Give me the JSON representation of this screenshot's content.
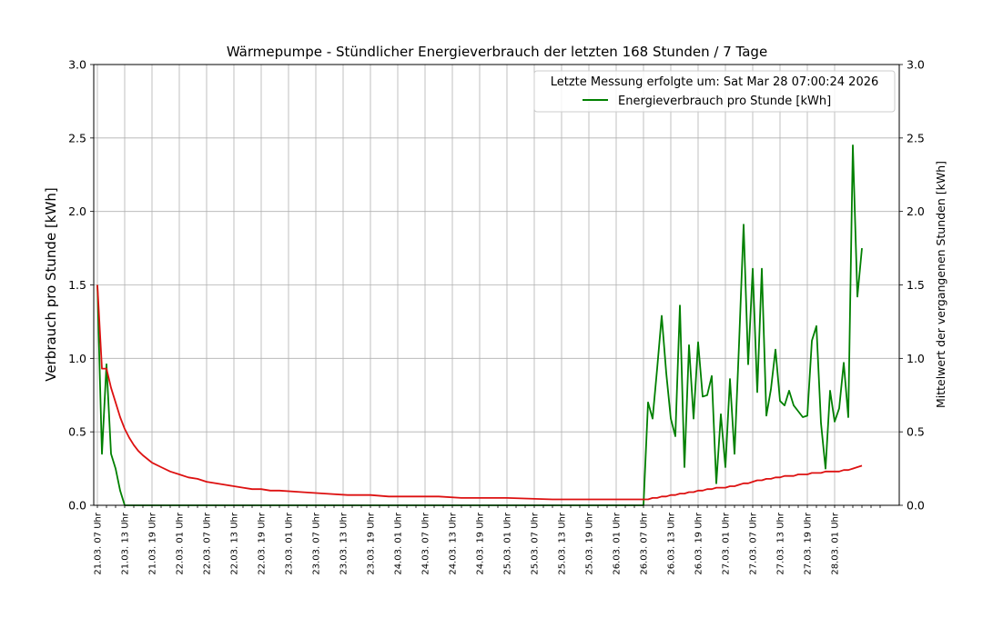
{
  "chart_data": {
    "type": "line",
    "title": "Wärmepumpe - Stündlicher Energieverbrauch der letzten 168 Stunden / 7 Tage",
    "ylabel": "Verbrauch pro Stunde [kWh]",
    "ylabel_right": "Mittelwert der vergangenen Stunden [kWh]",
    "ylim": [
      0,
      3.0
    ],
    "ylim_right": [
      0,
      3.0
    ],
    "yticks": [
      "0.0",
      "0.5",
      "1.0",
      "1.5",
      "2.0",
      "2.5",
      "3.0"
    ],
    "yticks_right": [
      "0.0",
      "0.5",
      "1.0",
      "1.5",
      "2.0",
      "2.5",
      "3.0"
    ],
    "xticklabels": [
      "21.03. 07 Uhr",
      "21.03. 13 Uhr",
      "21.03. 19 Uhr",
      "22.03. 01 Uhr",
      "22.03. 07 Uhr",
      "22.03. 13 Uhr",
      "22.03. 19 Uhr",
      "23.03. 01 Uhr",
      "23.03. 07 Uhr",
      "23.03. 13 Uhr",
      "23.03. 19 Uhr",
      "24.03. 01 Uhr",
      "24.03. 07 Uhr",
      "24.03. 13 Uhr",
      "24.03. 19 Uhr",
      "25.03. 01 Uhr",
      "25.03. 07 Uhr",
      "25.03. 13 Uhr",
      "25.03. 19 Uhr",
      "26.03. 01 Uhr",
      "26.03. 07 Uhr",
      "26.03. 13 Uhr",
      "26.03. 19 Uhr",
      "27.03. 01 Uhr",
      "27.03. 07 Uhr",
      "27.03. 13 Uhr",
      "27.03. 19 Uhr",
      "28.03. 01 Uhr"
    ],
    "grid": true,
    "legend_position": "top-right",
    "legend_note": "Letzte Messung erfolgte um: Sat Mar 28 07:00:24 2026",
    "series": [
      {
        "name": "Energieverbrauch pro Stunde [kWh]",
        "color": "#008000",
        "points": [
          [
            0,
            1.5
          ],
          [
            1,
            0.35
          ],
          [
            2,
            0.96
          ],
          [
            3,
            0.35
          ],
          [
            4,
            0.25
          ],
          [
            5,
            0.1
          ],
          [
            6,
            0.0
          ],
          [
            120,
            0.0
          ],
          [
            121,
            0.7
          ],
          [
            122,
            0.59
          ],
          [
            123,
            0.93
          ],
          [
            124,
            1.29
          ],
          [
            125,
            0.9
          ],
          [
            126,
            0.59
          ],
          [
            127,
            0.47
          ],
          [
            128,
            1.36
          ],
          [
            129,
            0.26
          ],
          [
            130,
            1.09
          ],
          [
            131,
            0.59
          ],
          [
            132,
            1.11
          ],
          [
            133,
            0.74
          ],
          [
            134,
            0.75
          ],
          [
            135,
            0.88
          ],
          [
            136,
            0.15
          ],
          [
            137,
            0.62
          ],
          [
            138,
            0.26
          ],
          [
            139,
            0.86
          ],
          [
            140,
            0.35
          ],
          [
            141,
            1.1
          ],
          [
            142,
            1.91
          ],
          [
            143,
            0.96
          ],
          [
            144,
            1.61
          ],
          [
            145,
            0.77
          ],
          [
            146,
            1.61
          ],
          [
            147,
            0.61
          ],
          [
            148,
            0.79
          ],
          [
            149,
            1.06
          ],
          [
            150,
            0.71
          ],
          [
            151,
            0.68
          ],
          [
            152,
            0.78
          ],
          [
            153,
            0.68
          ],
          [
            154,
            0.64
          ],
          [
            155,
            0.6
          ],
          [
            156,
            0.61
          ],
          [
            157,
            1.12
          ],
          [
            158,
            1.22
          ],
          [
            159,
            0.56
          ],
          [
            160,
            0.25
          ],
          [
            161,
            0.78
          ],
          [
            162,
            0.57
          ],
          [
            163,
            0.66
          ],
          [
            164,
            0.97
          ],
          [
            165,
            0.6
          ],
          [
            166,
            2.45
          ],
          [
            167,
            1.42
          ],
          [
            168,
            1.75
          ]
        ]
      },
      {
        "color": "#dd1111",
        "axis": "right",
        "points": [
          [
            0,
            1.5
          ],
          [
            1,
            0.93
          ],
          [
            2,
            0.93
          ],
          [
            3,
            0.8
          ],
          [
            4,
            0.7
          ],
          [
            5,
            0.6
          ],
          [
            6,
            0.52
          ],
          [
            7,
            0.46
          ],
          [
            8,
            0.41
          ],
          [
            9,
            0.37
          ],
          [
            10,
            0.34
          ],
          [
            12,
            0.29
          ],
          [
            14,
            0.26
          ],
          [
            16,
            0.23
          ],
          [
            18,
            0.21
          ],
          [
            20,
            0.19
          ],
          [
            22,
            0.18
          ],
          [
            24,
            0.16
          ],
          [
            26,
            0.15
          ],
          [
            28,
            0.14
          ],
          [
            30,
            0.13
          ],
          [
            32,
            0.12
          ],
          [
            34,
            0.11
          ],
          [
            36,
            0.11
          ],
          [
            38,
            0.1
          ],
          [
            40,
            0.1
          ],
          [
            45,
            0.09
          ],
          [
            50,
            0.08
          ],
          [
            55,
            0.07
          ],
          [
            60,
            0.07
          ],
          [
            64,
            0.06
          ],
          [
            70,
            0.06
          ],
          [
            75,
            0.06
          ],
          [
            80,
            0.05
          ],
          [
            90,
            0.05
          ],
          [
            100,
            0.04
          ],
          [
            110,
            0.04
          ],
          [
            120,
            0.04
          ],
          [
            121,
            0.04
          ],
          [
            122,
            0.05
          ],
          [
            123,
            0.05
          ],
          [
            124,
            0.06
          ],
          [
            125,
            0.06
          ],
          [
            126,
            0.07
          ],
          [
            127,
            0.07
          ],
          [
            128,
            0.08
          ],
          [
            129,
            0.08
          ],
          [
            130,
            0.09
          ],
          [
            131,
            0.09
          ],
          [
            132,
            0.1
          ],
          [
            133,
            0.1
          ],
          [
            134,
            0.11
          ],
          [
            135,
            0.11
          ],
          [
            136,
            0.12
          ],
          [
            137,
            0.12
          ],
          [
            138,
            0.12
          ],
          [
            139,
            0.13
          ],
          [
            140,
            0.13
          ],
          [
            141,
            0.14
          ],
          [
            142,
            0.15
          ],
          [
            143,
            0.15
          ],
          [
            144,
            0.16
          ],
          [
            145,
            0.17
          ],
          [
            146,
            0.17
          ],
          [
            147,
            0.18
          ],
          [
            148,
            0.18
          ],
          [
            149,
            0.19
          ],
          [
            150,
            0.19
          ],
          [
            151,
            0.2
          ],
          [
            152,
            0.2
          ],
          [
            153,
            0.2
          ],
          [
            154,
            0.21
          ],
          [
            155,
            0.21
          ],
          [
            156,
            0.21
          ],
          [
            157,
            0.22
          ],
          [
            158,
            0.22
          ],
          [
            159,
            0.22
          ],
          [
            160,
            0.23
          ],
          [
            161,
            0.23
          ],
          [
            162,
            0.23
          ],
          [
            163,
            0.23
          ],
          [
            164,
            0.24
          ],
          [
            165,
            0.24
          ],
          [
            166,
            0.25
          ],
          [
            167,
            0.26
          ],
          [
            168,
            0.27
          ]
        ]
      }
    ]
  }
}
